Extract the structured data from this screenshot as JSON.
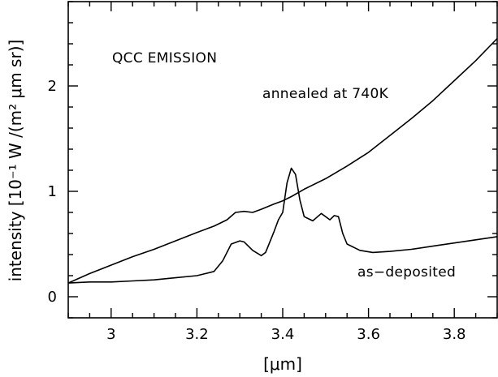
{
  "chart_data": {
    "type": "line",
    "title": "",
    "xlabel": "[μm]",
    "ylabel": "intensity [10⁻¹ W /(m² μm sr)]",
    "xlim": [
      2.9,
      3.9
    ],
    "ylim": [
      -0.2,
      2.8
    ],
    "grid": false,
    "x_ticks": [
      3,
      3.2,
      3.4,
      3.6,
      3.8
    ],
    "x_tick_labels": [
      "3",
      "3.2",
      "3.4",
      "3.6",
      "3.8"
    ],
    "y_ticks": [
      0,
      1,
      2
    ],
    "y_tick_labels": [
      "0",
      "1",
      "2"
    ],
    "annotations": [
      {
        "text": "QCC EMISSION"
      },
      {
        "text": "annealed at 740K"
      },
      {
        "text": "as−deposited"
      }
    ],
    "series": [
      {
        "label": "annealed at 740K",
        "x": [
          2.9,
          2.95,
          3.0,
          3.05,
          3.1,
          3.15,
          3.2,
          3.24,
          3.27,
          3.29,
          3.31,
          3.33,
          3.35,
          3.38,
          3.4,
          3.42,
          3.45,
          3.5,
          3.55,
          3.6,
          3.65,
          3.7,
          3.75,
          3.8,
          3.85,
          3.9
        ],
        "y": [
          0.13,
          0.22,
          0.3,
          0.38,
          0.45,
          0.53,
          0.61,
          0.67,
          0.73,
          0.8,
          0.81,
          0.8,
          0.83,
          0.88,
          0.91,
          0.95,
          1.02,
          1.12,
          1.24,
          1.37,
          1.53,
          1.69,
          1.86,
          2.05,
          2.24,
          2.45
        ]
      },
      {
        "label": "as−deposited",
        "x": [
          2.9,
          2.95,
          3.0,
          3.05,
          3.1,
          3.15,
          3.2,
          3.24,
          3.26,
          3.28,
          3.3,
          3.31,
          3.33,
          3.35,
          3.36,
          3.38,
          3.39,
          3.4,
          3.41,
          3.42,
          3.43,
          3.44,
          3.45,
          3.47,
          3.49,
          3.51,
          3.52,
          3.53,
          3.54,
          3.55,
          3.58,
          3.61,
          3.65,
          3.7,
          3.75,
          3.8,
          3.85,
          3.9
        ],
        "y": [
          0.13,
          0.14,
          0.14,
          0.15,
          0.16,
          0.18,
          0.2,
          0.24,
          0.34,
          0.5,
          0.53,
          0.52,
          0.44,
          0.39,
          0.42,
          0.62,
          0.73,
          0.8,
          1.08,
          1.22,
          1.16,
          0.92,
          0.76,
          0.72,
          0.79,
          0.73,
          0.77,
          0.76,
          0.6,
          0.5,
          0.44,
          0.42,
          0.43,
          0.45,
          0.48,
          0.51,
          0.54,
          0.57
        ]
      }
    ]
  }
}
